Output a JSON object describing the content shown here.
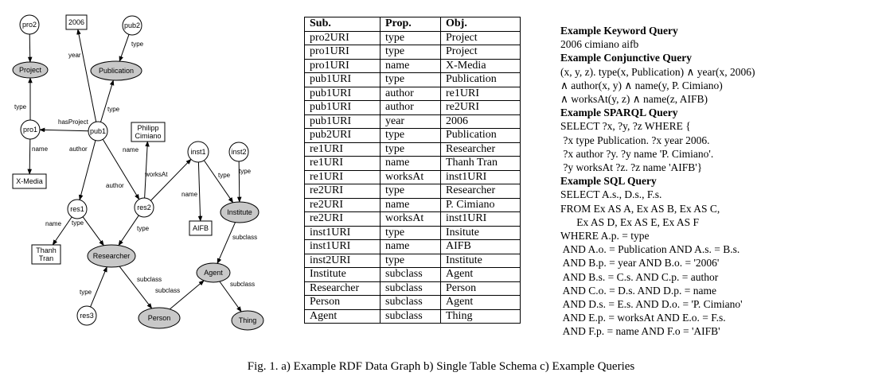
{
  "graph": {
    "nodes": [
      {
        "id": "pro2",
        "label": [
          "pro2"
        ]
      },
      {
        "id": "project",
        "label": [
          "Project"
        ]
      },
      {
        "id": "pro1",
        "label": [
          "pro1"
        ]
      },
      {
        "id": "xmedia",
        "label": [
          "X-Media"
        ]
      },
      {
        "id": "y2006",
        "label": [
          "2006"
        ]
      },
      {
        "id": "pub2",
        "label": [
          "pub2"
        ]
      },
      {
        "id": "publication",
        "label": [
          "Publication"
        ]
      },
      {
        "id": "pub1",
        "label": [
          "pub1"
        ]
      },
      {
        "id": "cimiano",
        "label": [
          "Philipp",
          "Cimiano"
        ]
      },
      {
        "id": "inst1",
        "label": [
          "inst1"
        ]
      },
      {
        "id": "inst2",
        "label": [
          "inst2"
        ]
      },
      {
        "id": "res1",
        "label": [
          "res1"
        ]
      },
      {
        "id": "res2",
        "label": [
          "res2"
        ]
      },
      {
        "id": "thanh",
        "label": [
          "Thanh",
          "Tran"
        ]
      },
      {
        "id": "aifb",
        "label": [
          "AIFB"
        ]
      },
      {
        "id": "institute",
        "label": [
          "Institute"
        ]
      },
      {
        "id": "researcher",
        "label": [
          "Researcher"
        ]
      },
      {
        "id": "agent",
        "label": [
          "Agent"
        ]
      },
      {
        "id": "res3",
        "label": [
          "res3"
        ]
      },
      {
        "id": "person",
        "label": [
          "Person"
        ]
      },
      {
        "id": "thing",
        "label": [
          "Thing"
        ]
      }
    ],
    "edges": [
      {
        "from": "pro2",
        "to": "project",
        "label": ""
      },
      {
        "from": "pro1",
        "to": "project",
        "label": "type"
      },
      {
        "from": "pro1",
        "to": "xmedia",
        "label": "name"
      },
      {
        "from": "pub1",
        "to": "pro1",
        "label": "hasProject"
      },
      {
        "from": "pub1",
        "to": "y2006",
        "label": "year"
      },
      {
        "from": "pub2",
        "to": "publication",
        "label": "type"
      },
      {
        "from": "pub1",
        "to": "publication",
        "label": "type"
      },
      {
        "from": "pub1",
        "to": "res1",
        "label": "author"
      },
      {
        "from": "pub1",
        "to": "res2",
        "label": "author"
      },
      {
        "from": "res2",
        "to": "cimiano",
        "label": "name"
      },
      {
        "from": "res2",
        "to": "inst1",
        "label": "worksAt"
      },
      {
        "from": "res1",
        "to": "thanh",
        "label": "name"
      },
      {
        "from": "res1",
        "to": "researcher",
        "label": "type"
      },
      {
        "from": "res2",
        "to": "researcher",
        "label": "type"
      },
      {
        "from": "inst1",
        "to": "aifb",
        "label": "name"
      },
      {
        "from": "inst1",
        "to": "institute",
        "label": "type"
      },
      {
        "from": "inst2",
        "to": "institute",
        "label": "type"
      },
      {
        "from": "institute",
        "to": "agent",
        "label": "subclass"
      },
      {
        "from": "res3",
        "to": "researcher",
        "label": "type"
      },
      {
        "from": "researcher",
        "to": "person",
        "label": "subclass"
      },
      {
        "from": "person",
        "to": "agent",
        "label": "subclass"
      },
      {
        "from": "agent",
        "to": "thing",
        "label": "subclass"
      }
    ]
  },
  "table": {
    "headers": [
      "Sub.",
      "Prop.",
      "Obj."
    ],
    "rows": [
      [
        "pro2URI",
        "type",
        "Project"
      ],
      [
        "pro1URI",
        "type",
        "Project"
      ],
      [
        "pro1URI",
        "name",
        "X-Media"
      ],
      [
        "pub1URI",
        "type",
        "Publication"
      ],
      [
        "pub1URI",
        "author",
        "re1URI"
      ],
      [
        "pub1URI",
        "author",
        "re2URI"
      ],
      [
        "pub1URI",
        "year",
        "2006"
      ],
      [
        "pub2URI",
        "type",
        "Publication"
      ],
      [
        "re1URI",
        "type",
        "Researcher"
      ],
      [
        "re1URI",
        "name",
        "Thanh Tran"
      ],
      [
        "re1URI",
        "worksAt",
        "inst1URI"
      ],
      [
        "re2URI",
        "type",
        "Researcher"
      ],
      [
        "re2URI",
        "name",
        "P. Cimiano"
      ],
      [
        "re2URI",
        "worksAt",
        "inst1URI"
      ],
      [
        "inst1URI",
        "type",
        "Insitute"
      ],
      [
        "inst1URI",
        "name",
        "AIFB"
      ],
      [
        "inst2URI",
        "type",
        "Institute"
      ],
      [
        "Institute",
        "subclass",
        "Agent"
      ],
      [
        "Researcher",
        "subclass",
        "Person"
      ],
      [
        "Person",
        "subclass",
        "Agent"
      ],
      [
        "Agent",
        "subclass",
        "Thing"
      ]
    ]
  },
  "queries": [
    {
      "text": "Example Keyword Query",
      "bold": true
    },
    {
      "text": "2006 cimiano aifb",
      "bold": false
    },
    {
      "text": "Example Conjunctive Query",
      "bold": true
    },
    {
      "text": "(x, y, z). type(x, Publication) ∧ year(x, 2006)",
      "bold": false
    },
    {
      "text": "∧ author(x, y) ∧ name(y, P. Cimiano)",
      "bold": false
    },
    {
      "text": "∧ worksAt(y, z) ∧ name(z, AIFB)",
      "bold": false
    },
    {
      "text": "Example SPARQL Query",
      "bold": true
    },
    {
      "text": "SELECT ?x, ?y, ?z WHERE {",
      "bold": false
    },
    {
      "text": " ?x type Publication. ?x year 2006.",
      "bold": false
    },
    {
      "text": " ?x author ?y. ?y name 'P. Cimiano'.",
      "bold": false
    },
    {
      "text": " ?y worksAt ?z. ?z name 'AIFB'}",
      "bold": false
    },
    {
      "text": "Example SQL Query",
      "bold": true
    },
    {
      "text": "SELECT A.s., D.s., F.s.",
      "bold": false
    },
    {
      "text": "      Ex AS A, Ex AS B, Ex AS C,",
      "bold": false
    },
    {
      "text": "      Ex AS D, Ex AS E, Ex AS F",
      "bold": false
    },
    {
      "text": "WHERE A.p. = type",
      "bold": false
    },
    {
      "text": " AND A.o. = Publication AND A.s. = B.s.",
      "bold": false
    },
    {
      "text": " AND B.p. = year AND B.o. = '2006'",
      "bold": false
    },
    {
      "text": " AND B.s. = C.s. AND C.p. = author",
      "bold": false
    },
    {
      "text": " AND C.o. = D.s. AND D.p. = name",
      "bold": false
    },
    {
      "text": " AND D.s. = E.s. AND D.o. = 'P. Cimiano'",
      "bold": false
    },
    {
      "text": " AND E.p. = worksAt AND E.o. = F.s.",
      "bold": false
    },
    {
      "text": " AND F.p. = name AND F.o = 'AIFB'",
      "bold": false
    }
  ],
  "from_line": "FROM Ex AS A, Ex AS B, Ex AS C,",
  "caption": "Fig. 1.   a) Example RDF Data Graph b) Single Table Schema c) Example Queries"
}
